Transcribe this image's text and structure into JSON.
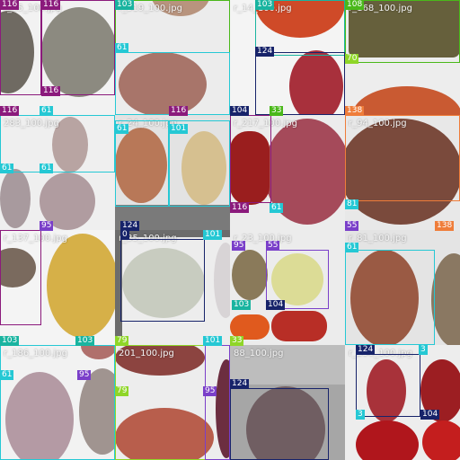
{
  "tiles": [
    {
      "filename": "r_15_100.jpg"
    },
    {
      "filename": "r_319_100.jpg"
    },
    {
      "filename": "r_14_100.jpg"
    },
    {
      "filename": "r_168_100.jpg"
    },
    {
      "filename": "283_100.jpg"
    },
    {
      "filename": "r_24_100.jpg"
    },
    {
      "filename": "r_217_100.jpg"
    },
    {
      "filename": "r_94_100.jpg"
    },
    {
      "filename": "r_137_100.jpg"
    },
    {
      "filename": "r_35_100.jpg"
    },
    {
      "filename": "r_23_100.jpg"
    },
    {
      "filename": "r_81_100.jpg"
    },
    {
      "filename": "r_186_100.jpg"
    },
    {
      "filename": "201_100.jpg"
    },
    {
      "filename": "88_100.jpg"
    },
    {
      "filename": "r_250_100.jpg"
    }
  ],
  "labels": [
    "116",
    "116",
    "116",
    "103",
    "61",
    "103",
    "124",
    "108",
    "70",
    "116",
    "61",
    "116",
    "104",
    "33",
    "138",
    "61",
    "101",
    "61",
    "61",
    "81",
    "124",
    "116",
    "61",
    "55",
    "138",
    "95",
    "101",
    "0",
    "95",
    "55",
    "103",
    "104",
    "61",
    "103",
    "103",
    "79",
    "101",
    "33",
    "61",
    "95",
    "124",
    "79",
    "95",
    "124",
    "3",
    "3",
    "104"
  ],
  "colors": {
    "purple": "#8b1a7c",
    "cyan": "#25c8d4",
    "navy": "#17236a",
    "green": "#4ab81a",
    "lime": "#8fd628",
    "teal": "#19b4a0",
    "violet": "#7a3fc9",
    "orange": "#ef7d3a",
    "olive": "#6e7a2a"
  }
}
